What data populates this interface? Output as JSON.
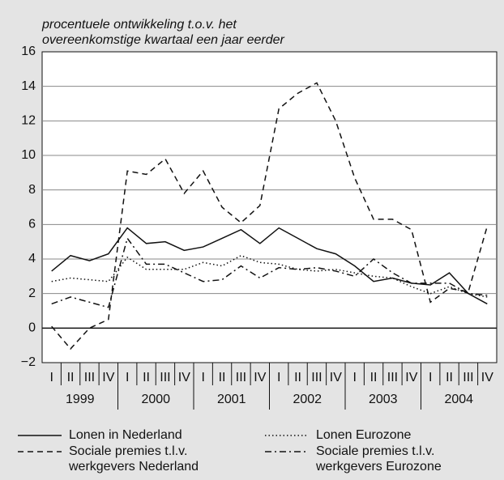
{
  "chart_data": {
    "type": "line",
    "ylabel": [
      "procentuele ontwikkeling t.o.v. het",
      "overeenkomstige kwartaal een jaar eerder"
    ],
    "categories": [
      "I",
      "II",
      "III",
      "IV",
      "I",
      "II",
      "III",
      "IV",
      "I",
      "II",
      "III",
      "IV",
      "I",
      "II",
      "III",
      "IV",
      "I",
      "II",
      "III",
      "IV",
      "I",
      "II",
      "III",
      "IV"
    ],
    "years": [
      "1999",
      "2000",
      "2001",
      "2002",
      "2003",
      "2004"
    ],
    "ylim": [
      -2,
      16
    ],
    "yticks": [
      {
        "value": -2,
        "label": "−2"
      },
      0,
      2,
      4,
      6,
      8,
      10,
      12,
      14,
      16
    ],
    "grid": true,
    "series": [
      {
        "name": "Lonen in Nederland",
        "color": "#111111",
        "dash": "solid",
        "values": [
          3.3,
          4.2,
          3.9,
          4.3,
          5.8,
          4.9,
          5.0,
          4.5,
          4.7,
          5.2,
          5.7,
          4.9,
          5.8,
          5.2,
          4.6,
          4.3,
          3.6,
          2.7,
          2.9,
          2.6,
          2.5,
          3.2,
          2.0,
          1.4
        ]
      },
      {
        "name": "Lonen Eurozone",
        "color": "#111111",
        "dash": "dotted",
        "values": [
          2.7,
          2.9,
          2.8,
          2.7,
          4.1,
          3.4,
          3.4,
          3.4,
          3.8,
          3.6,
          4.2,
          3.8,
          3.7,
          3.4,
          3.3,
          3.4,
          3.2,
          3.0,
          2.9,
          2.4,
          2.0,
          2.4,
          2.0,
          1.8
        ]
      },
      {
        "name": "Sociale premies t.l.v. werkgevers Nederland",
        "color": "#111111",
        "dash": "dashed",
        "values": [
          0.1,
          -1.2,
          0.0,
          0.5,
          9.1,
          8.9,
          9.8,
          7.8,
          9.1,
          7.0,
          6.1,
          7.1,
          12.7,
          13.6,
          14.2,
          12.0,
          8.7,
          6.3,
          6.3,
          5.7,
          1.5,
          2.3,
          2.1,
          5.9
        ]
      },
      {
        "name": "Sociale premies t.l.v. werkgevers Eurozone",
        "color": "#111111",
        "dash": "dashdot",
        "values": [
          1.4,
          1.8,
          1.5,
          1.2,
          5.2,
          3.7,
          3.7,
          3.2,
          2.7,
          2.8,
          3.6,
          2.9,
          3.5,
          3.4,
          3.5,
          3.3,
          3.0,
          4.0,
          3.2,
          2.6,
          2.6,
          2.6,
          2.0,
          1.9
        ]
      }
    ]
  }
}
